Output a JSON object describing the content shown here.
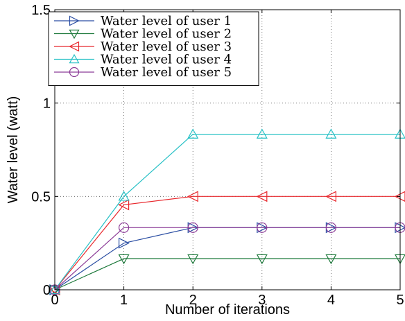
{
  "chart_data": {
    "type": "line",
    "title": "",
    "xlabel": "Number of iterations",
    "ylabel": "Water level (watt)",
    "xlim": [
      0,
      5
    ],
    "ylim": [
      0,
      1.5
    ],
    "x_ticks": [
      0,
      1,
      2,
      3,
      4,
      5
    ],
    "y_ticks": [
      0,
      0.5,
      1,
      1.5
    ],
    "x_tick_labels": [
      "0",
      "1",
      "2",
      "3",
      "4",
      "5"
    ],
    "y_tick_labels": [
      "0",
      "0.5",
      "1",
      "1.5"
    ],
    "grid": true,
    "legend_position": "top-left",
    "x": [
      0,
      1,
      2,
      3,
      4,
      5
    ],
    "series": [
      {
        "name": "Water level of user 1",
        "values": [
          0,
          0.25,
          0.333,
          0.333,
          0.333,
          0.333
        ],
        "color": "#2b4ea3",
        "marker": "triangle-right"
      },
      {
        "name": "Water level of user 2",
        "values": [
          0,
          0.167,
          0.167,
          0.167,
          0.167,
          0.167
        ],
        "color": "#1e7a3c",
        "marker": "triangle-down"
      },
      {
        "name": "Water level of user 3",
        "values": [
          0,
          0.455,
          0.5,
          0.5,
          0.5,
          0.5
        ],
        "color": "#e8272c",
        "marker": "triangle-left"
      },
      {
        "name": "Water level of user 4",
        "values": [
          0,
          0.5,
          0.833,
          0.833,
          0.833,
          0.833
        ],
        "color": "#28c1c6",
        "marker": "triangle-up"
      },
      {
        "name": "Water level of user 5",
        "values": [
          0,
          0.333,
          0.333,
          0.333,
          0.333,
          0.333
        ],
        "color": "#8b3a96",
        "marker": "circle"
      }
    ]
  }
}
